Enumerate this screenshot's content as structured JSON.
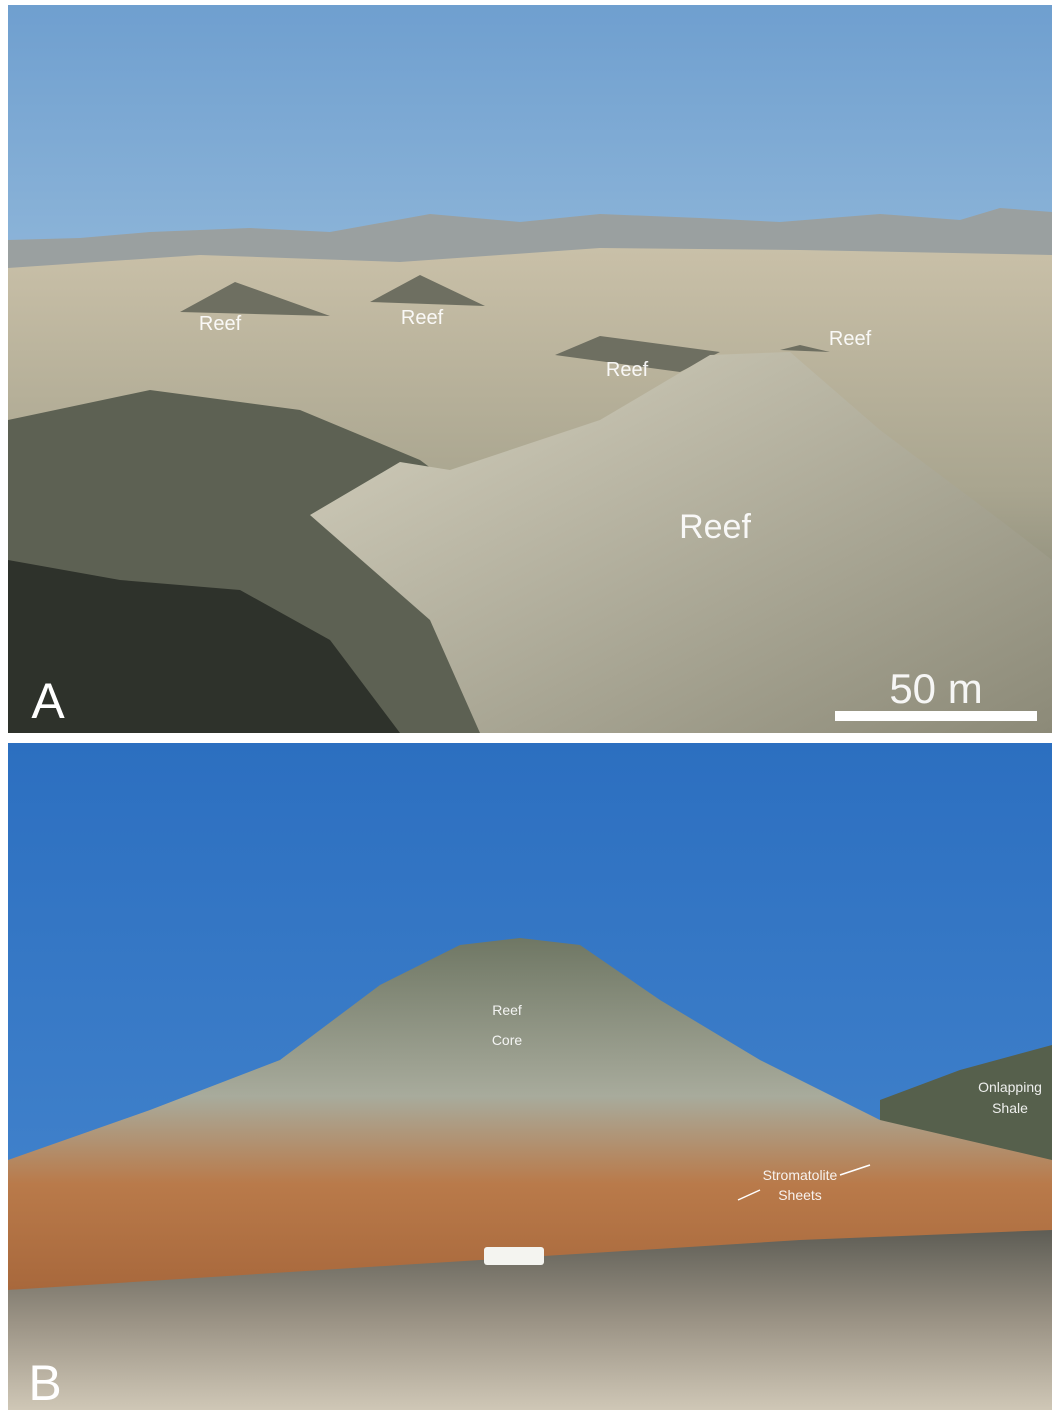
{
  "panels": [
    {
      "letter": "A",
      "labels": [
        "Reef",
        "Reef",
        "Reef",
        "Reef",
        "Reef"
      ],
      "scale_bar": "50 m"
    },
    {
      "letter": "B",
      "labels": [
        [
          "Reef",
          "Core"
        ],
        [
          "Onlapping",
          "Shale"
        ],
        [
          "Stromatolite",
          "Sheets"
        ]
      ]
    }
  ]
}
